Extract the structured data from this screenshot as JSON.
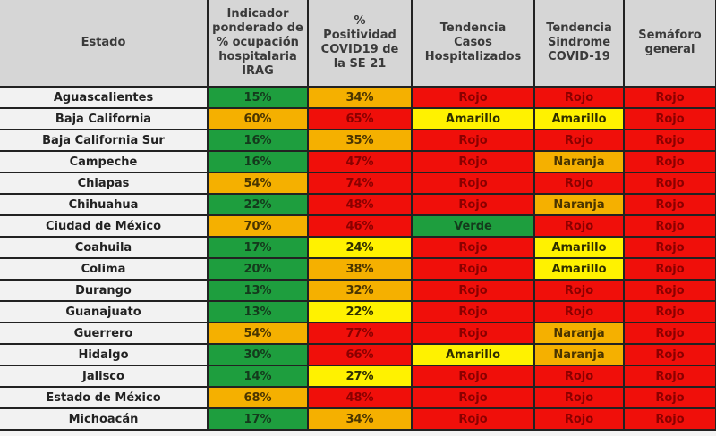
{
  "headers": [
    "Estado",
    "Indicador\nponderado de\n% ocupación\nhospitalaria\nIRAG",
    "%\nPositividad\nCOVID19 de\nla SE 21",
    "Tendencia\nCasos\nHospitalizados",
    "Tendencia\nSindrome\nCOVID-19",
    "Semáforo\ngeneral"
  ],
  "colors": {
    "g": "#1e9e3e",
    "o": "#f5b000",
    "y": "#fff200",
    "r": "#f00f0a"
  },
  "rows": [
    {
      "estado": "Aguascalientes",
      "irag": "15%",
      "irag_c": "g",
      "pos": "34%",
      "pos_c": "o",
      "hosp": "Rojo",
      "sind": "Rojo",
      "sem": "Rojo"
    },
    {
      "estado": "Baja California",
      "irag": "60%",
      "irag_c": "o",
      "pos": "65%",
      "pos_c": "r",
      "hosp": "Amarillo",
      "sind": "Amarillo",
      "sem": "Rojo"
    },
    {
      "estado": "Baja California Sur",
      "irag": "16%",
      "irag_c": "g",
      "pos": "35%",
      "pos_c": "o",
      "hosp": "Rojo",
      "sind": "Rojo",
      "sem": "Rojo"
    },
    {
      "estado": "Campeche",
      "irag": "16%",
      "irag_c": "g",
      "pos": "47%",
      "pos_c": "r",
      "hosp": "Rojo",
      "sind": "Naranja",
      "sem": "Rojo"
    },
    {
      "estado": "Chiapas",
      "irag": "54%",
      "irag_c": "o",
      "pos": "74%",
      "pos_c": "r",
      "hosp": "Rojo",
      "sind": "Rojo",
      "sem": "Rojo"
    },
    {
      "estado": "Chihuahua",
      "irag": "22%",
      "irag_c": "g",
      "pos": "48%",
      "pos_c": "r",
      "hosp": "Rojo",
      "sind": "Naranja",
      "sem": "Rojo"
    },
    {
      "estado": "Ciudad de México",
      "irag": "70%",
      "irag_c": "o",
      "pos": "46%",
      "pos_c": "r",
      "hosp": "Verde",
      "sind": "Rojo",
      "sem": "Rojo"
    },
    {
      "estado": "Coahuila",
      "irag": "17%",
      "irag_c": "g",
      "pos": "24%",
      "pos_c": "y",
      "hosp": "Rojo",
      "sind": "Amarillo",
      "sem": "Rojo"
    },
    {
      "estado": "Colima",
      "irag": "20%",
      "irag_c": "g",
      "pos": "38%",
      "pos_c": "o",
      "hosp": "Rojo",
      "sind": "Amarillo",
      "sem": "Rojo"
    },
    {
      "estado": "Durango",
      "irag": "13%",
      "irag_c": "g",
      "pos": "32%",
      "pos_c": "o",
      "hosp": "Rojo",
      "sind": "Rojo",
      "sem": "Rojo"
    },
    {
      "estado": "Guanajuato",
      "irag": "13%",
      "irag_c": "g",
      "pos": "22%",
      "pos_c": "y",
      "hosp": "Rojo",
      "sind": "Rojo",
      "sem": "Rojo"
    },
    {
      "estado": "Guerrero",
      "irag": "54%",
      "irag_c": "o",
      "pos": "77%",
      "pos_c": "r",
      "hosp": "Rojo",
      "sind": "Naranja",
      "sem": "Rojo"
    },
    {
      "estado": "Hidalgo",
      "irag": "30%",
      "irag_c": "g",
      "pos": "66%",
      "pos_c": "r",
      "hosp": "Amarillo",
      "sind": "Naranja",
      "sem": "Rojo"
    },
    {
      "estado": "Jalisco",
      "irag": "14%",
      "irag_c": "g",
      "pos": "27%",
      "pos_c": "y",
      "hosp": "Rojo",
      "sind": "Rojo",
      "sem": "Rojo"
    },
    {
      "estado": "Estado de México",
      "irag": "68%",
      "irag_c": "o",
      "pos": "48%",
      "pos_c": "r",
      "hosp": "Rojo",
      "sind": "Rojo",
      "sem": "Rojo"
    },
    {
      "estado": "Michoacán",
      "irag": "17%",
      "irag_c": "g",
      "pos": "34%",
      "pos_c": "o",
      "hosp": "Rojo",
      "sind": "Rojo",
      "sem": "Rojo"
    }
  ]
}
